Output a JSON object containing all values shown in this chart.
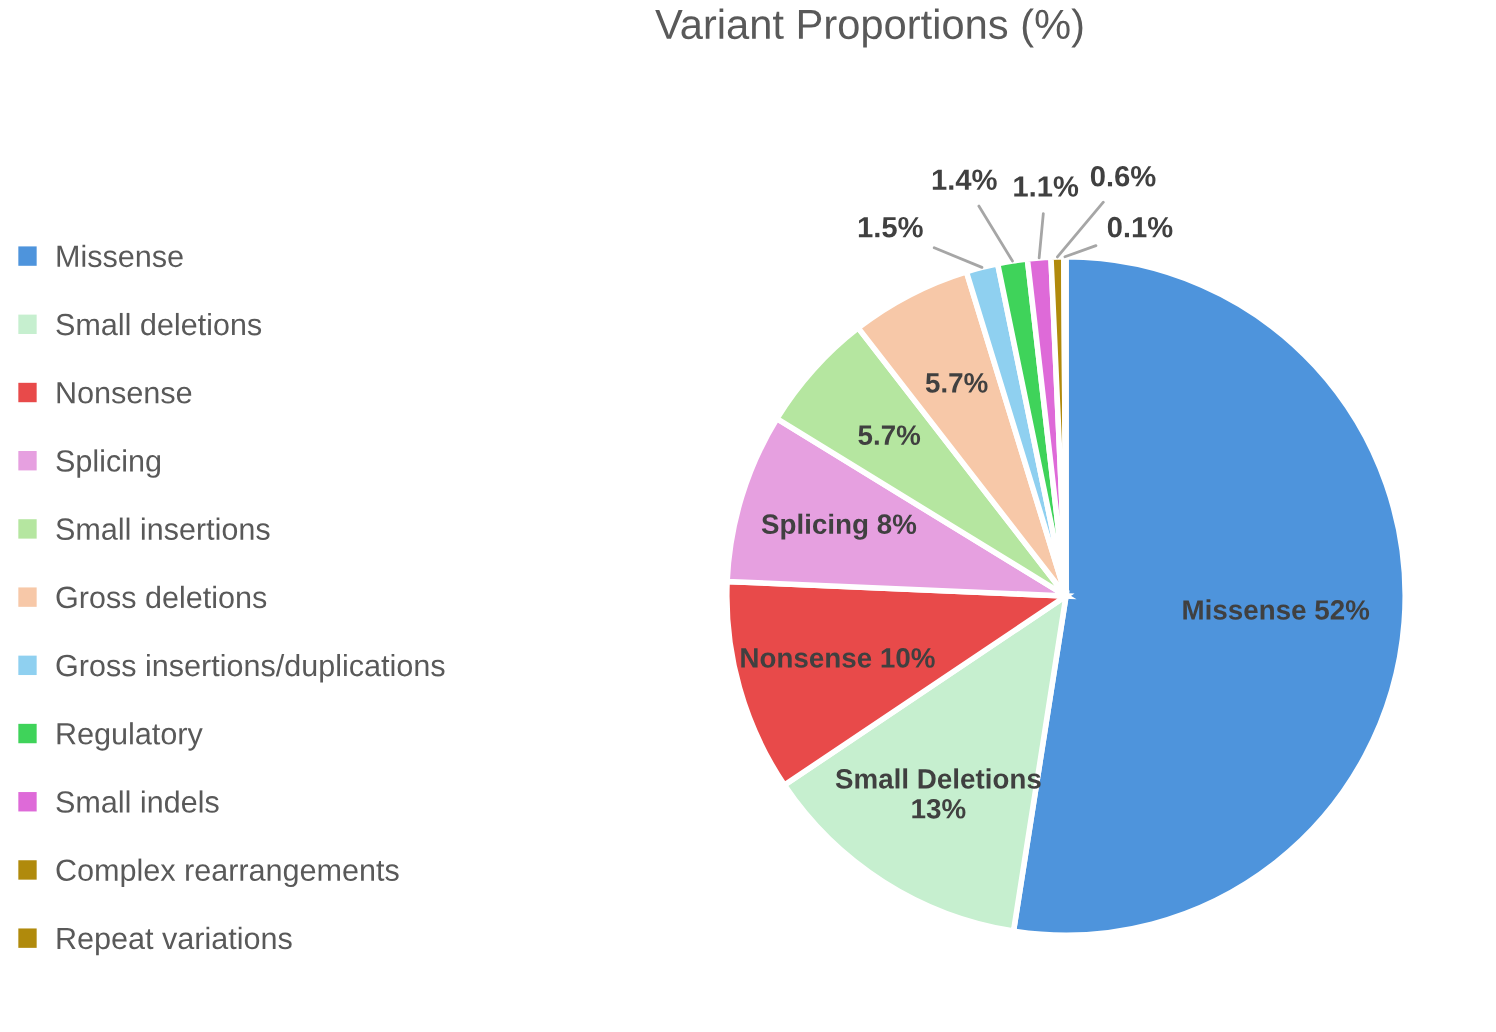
{
  "chart_data": {
    "type": "pie",
    "title": "Variant Proportions (%)",
    "categories": [
      "Missense",
      "Small deletions",
      "Nonsense",
      "Splicing",
      "Small insertions",
      "Gross deletions",
      "Gross insertions/duplications",
      "Regulatory",
      "Small indels",
      "Complex rearrangements",
      "Repeat variations"
    ],
    "values": [
      52,
      13,
      10,
      8,
      5.7,
      5.7,
      1.5,
      1.4,
      1.1,
      0.6,
      0.1
    ],
    "colors": [
      "#4e94dc",
      "#c6efcf",
      "#e84a4a",
      "#e6a0e0",
      "#b5e6a0",
      "#f7c8a8",
      "#8fd0f0",
      "#3fd35a",
      "#de6ad8",
      "#b08a0c",
      "#b08a0c"
    ],
    "value_labels": [
      "Missense 52%",
      "Small Deletions\n13%",
      "Nonsense 10%",
      "Splicing 8%",
      "5.7%",
      "5.7%",
      "1.5%",
      "1.4%",
      "1.1%",
      "0.6%",
      "0.1%"
    ],
    "legend": "left"
  }
}
